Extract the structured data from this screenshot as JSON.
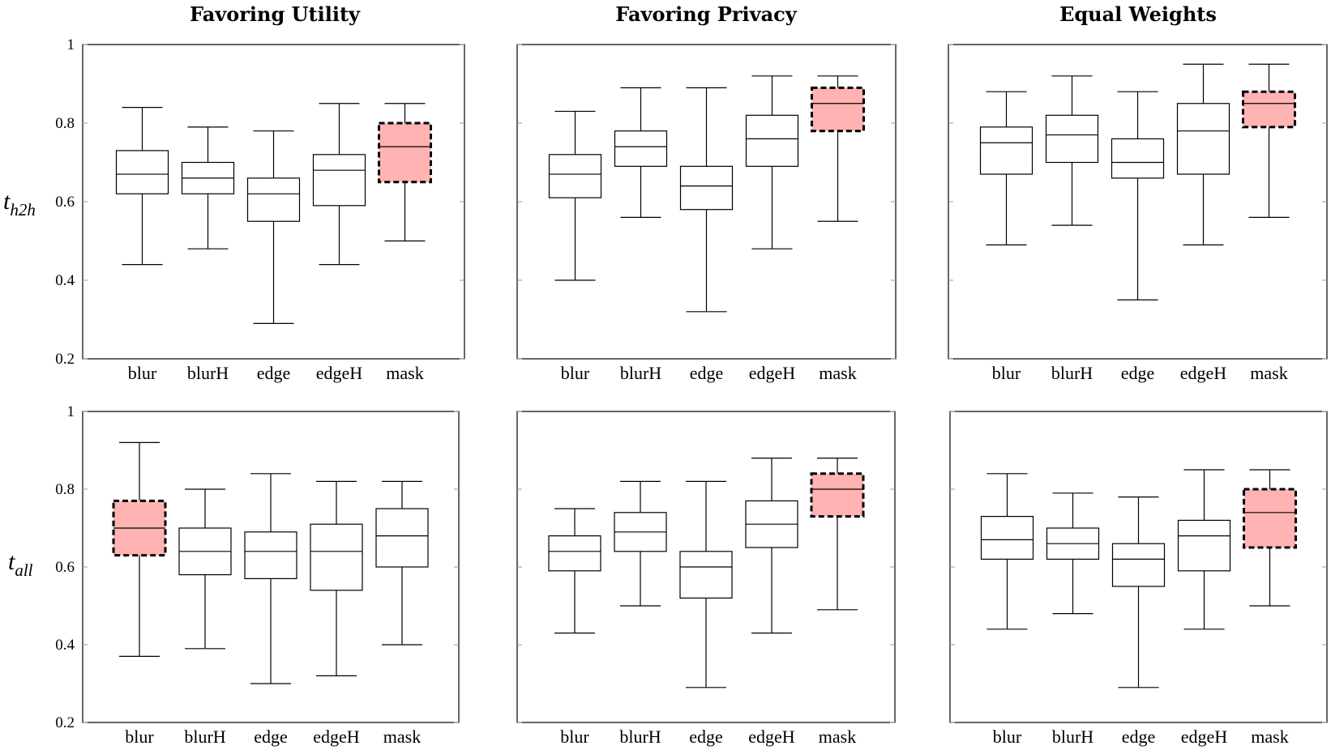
{
  "colors": {
    "highlight_fill": "#ffb3b3",
    "line": "#000000",
    "grid_tick": "#999999"
  },
  "chart_data": [
    {
      "type": "box",
      "title": "Favoring Utility",
      "ylabel": "t_{h2h}",
      "ylabel_main": "t",
      "ylabel_sub": "h2h",
      "ylim": [
        0.2,
        1
      ],
      "yticks": [
        "0.2",
        "0.4",
        "0.6",
        "0.8",
        "1"
      ],
      "categories": [
        "blur",
        "blurH",
        "edge",
        "edgeH",
        "mask"
      ],
      "boxes": [
        {
          "min": 0.44,
          "q1": 0.62,
          "median": 0.67,
          "q3": 0.73,
          "max": 0.84
        },
        {
          "min": 0.48,
          "q1": 0.62,
          "median": 0.66,
          "q3": 0.7,
          "max": 0.79
        },
        {
          "min": 0.29,
          "q1": 0.55,
          "median": 0.62,
          "q3": 0.66,
          "max": 0.78
        },
        {
          "min": 0.44,
          "q1": 0.59,
          "median": 0.68,
          "q3": 0.72,
          "max": 0.85
        },
        {
          "min": 0.5,
          "q1": 0.65,
          "median": 0.74,
          "q3": 0.8,
          "max": 0.85
        }
      ],
      "highlight": 4
    },
    {
      "type": "box",
      "title": "Favoring Privacy",
      "ylim": [
        0.2,
        1
      ],
      "categories": [
        "blur",
        "blurH",
        "edge",
        "edgeH",
        "mask"
      ],
      "boxes": [
        {
          "min": 0.4,
          "q1": 0.61,
          "median": 0.67,
          "q3": 0.72,
          "max": 0.83
        },
        {
          "min": 0.56,
          "q1": 0.69,
          "median": 0.74,
          "q3": 0.78,
          "max": 0.89
        },
        {
          "min": 0.32,
          "q1": 0.58,
          "median": 0.64,
          "q3": 0.69,
          "max": 0.89
        },
        {
          "min": 0.48,
          "q1": 0.69,
          "median": 0.76,
          "q3": 0.82,
          "max": 0.92
        },
        {
          "min": 0.55,
          "q1": 0.78,
          "median": 0.85,
          "q3": 0.89,
          "max": 0.92
        }
      ],
      "highlight": 4
    },
    {
      "type": "box",
      "title": "Equal Weights",
      "ylim": [
        0.2,
        1
      ],
      "categories": [
        "blur",
        "blurH",
        "edge",
        "edgeH",
        "mask"
      ],
      "boxes": [
        {
          "min": 0.49,
          "q1": 0.67,
          "median": 0.75,
          "q3": 0.79,
          "max": 0.88
        },
        {
          "min": 0.54,
          "q1": 0.7,
          "median": 0.77,
          "q3": 0.82,
          "max": 0.92
        },
        {
          "min": 0.35,
          "q1": 0.66,
          "median": 0.7,
          "q3": 0.76,
          "max": 0.88
        },
        {
          "min": 0.49,
          "q1": 0.67,
          "median": 0.78,
          "q3": 0.85,
          "max": 0.95
        },
        {
          "min": 0.56,
          "q1": 0.79,
          "median": 0.85,
          "q3": 0.88,
          "max": 0.95
        }
      ],
      "highlight": 4
    },
    {
      "type": "box",
      "ylabel": "t_{all}",
      "ylabel_main": "t",
      "ylabel_sub": "all",
      "ylim": [
        0.2,
        1
      ],
      "yticks": [
        "0.2",
        "0.4",
        "0.6",
        "0.8",
        "1"
      ],
      "categories": [
        "blur",
        "blurH",
        "edge",
        "edgeH",
        "mask"
      ],
      "boxes": [
        {
          "min": 0.37,
          "q1": 0.63,
          "median": 0.7,
          "q3": 0.77,
          "max": 0.92
        },
        {
          "min": 0.39,
          "q1": 0.58,
          "median": 0.64,
          "q3": 0.7,
          "max": 0.8
        },
        {
          "min": 0.3,
          "q1": 0.57,
          "median": 0.64,
          "q3": 0.69,
          "max": 0.84
        },
        {
          "min": 0.32,
          "q1": 0.54,
          "median": 0.64,
          "q3": 0.71,
          "max": 0.82
        },
        {
          "min": 0.4,
          "q1": 0.6,
          "median": 0.68,
          "q3": 0.75,
          "max": 0.82
        }
      ],
      "highlight": 0
    },
    {
      "type": "box",
      "ylim": [
        0.2,
        1
      ],
      "categories": [
        "blur",
        "blurH",
        "edge",
        "edgeH",
        "mask"
      ],
      "boxes": [
        {
          "min": 0.43,
          "q1": 0.59,
          "median": 0.64,
          "q3": 0.68,
          "max": 0.75
        },
        {
          "min": 0.5,
          "q1": 0.64,
          "median": 0.69,
          "q3": 0.74,
          "max": 0.82
        },
        {
          "min": 0.29,
          "q1": 0.52,
          "median": 0.6,
          "q3": 0.64,
          "max": 0.82
        },
        {
          "min": 0.43,
          "q1": 0.65,
          "median": 0.71,
          "q3": 0.77,
          "max": 0.88
        },
        {
          "min": 0.49,
          "q1": 0.73,
          "median": 0.8,
          "q3": 0.84,
          "max": 0.88
        }
      ],
      "highlight": 4
    },
    {
      "type": "box",
      "ylim": [
        0.2,
        1
      ],
      "categories": [
        "blur",
        "blurH",
        "edge",
        "edgeH",
        "mask"
      ],
      "boxes": [
        {
          "min": 0.44,
          "q1": 0.62,
          "median": 0.67,
          "q3": 0.73,
          "max": 0.84
        },
        {
          "min": 0.48,
          "q1": 0.62,
          "median": 0.66,
          "q3": 0.7,
          "max": 0.79
        },
        {
          "min": 0.29,
          "q1": 0.55,
          "median": 0.62,
          "q3": 0.66,
          "max": 0.78
        },
        {
          "min": 0.44,
          "q1": 0.59,
          "median": 0.68,
          "q3": 0.72,
          "max": 0.85
        },
        {
          "min": 0.5,
          "q1": 0.65,
          "median": 0.74,
          "q3": 0.8,
          "max": 0.85
        }
      ],
      "highlight": 4
    }
  ]
}
